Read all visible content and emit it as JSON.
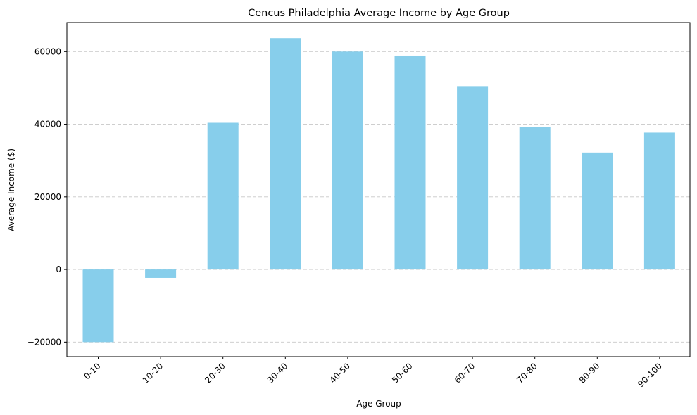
{
  "chart_data": {
    "type": "bar",
    "title": "Cencus Philadelphia Average Income by Age Group",
    "xlabel": "Age Group",
    "ylabel": "Average Income ($)",
    "categories": [
      "0-10",
      "10-20",
      "20-30",
      "30-40",
      "40-50",
      "50-60",
      "60-70",
      "70-80",
      "80-90",
      "90-100"
    ],
    "values": [
      -20000,
      -2300,
      40400,
      63700,
      60000,
      58900,
      50500,
      39200,
      32200,
      37700
    ],
    "ylim": [
      -24000,
      68000
    ],
    "yticks": [
      -20000,
      0,
      20000,
      40000,
      60000
    ],
    "ytick_labels": [
      "−20000",
      "0",
      "20000",
      "40000",
      "60000"
    ],
    "bar_color": "#87CEEB",
    "grid": "y-dashed"
  }
}
